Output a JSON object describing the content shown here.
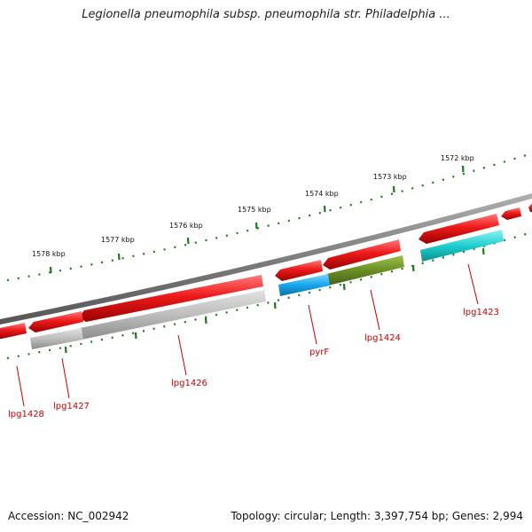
{
  "title": "Legionella pneumophila subsp. pneumophila str. Philadelphia ...",
  "footer": {
    "accession": "Accession: NC_002942",
    "topology": "Topology: circular; Length: 3,397,754 bp; Genes: 2,994"
  },
  "scale_ticks": [
    "1572 kbp",
    "1573 kbp",
    "1574 kbp",
    "1575 kbp",
    "1576 kbp",
    "1577 kbp",
    "1578 kbp"
  ],
  "gene_labels": [
    "lpg1423",
    "lpg1424",
    "pyrF",
    "lpg1426",
    "lpg1427",
    "lpg1428"
  ],
  "colors": {
    "genome_track": "#7d7d7d",
    "tick": "#1e7a1e",
    "gene_red": "#e61414",
    "gene_grey": "#b4b4b4",
    "gene_cyan": "#1fcfcf",
    "gene_blue": "#16a7ec",
    "gene_olive": "#6b8e23",
    "label_red": "#d00000"
  }
}
